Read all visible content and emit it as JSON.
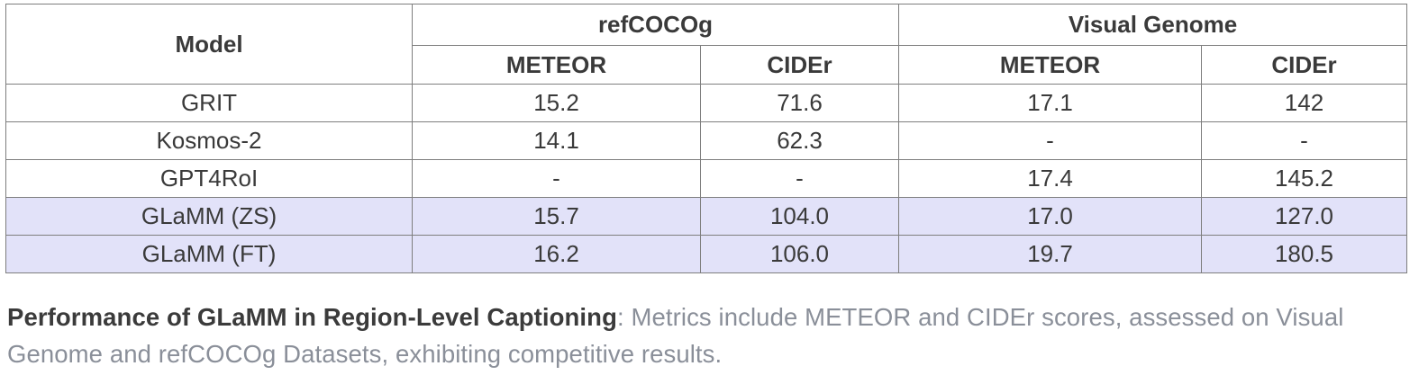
{
  "table": {
    "header": {
      "model_label": "Model",
      "group_refcocog": "refCOCOg",
      "group_visual_genome": "Visual Genome",
      "metric_meteor_1": "METEOR",
      "metric_cider_1": "CIDEr",
      "metric_meteor_2": "METEOR",
      "metric_cider_2": "CIDEr"
    },
    "rows": [
      {
        "model": "GRIT",
        "values": [
          "15.2",
          "71.6",
          "17.1",
          "142"
        ],
        "highlight": false,
        "bold_values": false
      },
      {
        "model": "Kosmos-2",
        "values": [
          "14.1",
          "62.3",
          "-",
          "-"
        ],
        "highlight": false,
        "bold_values": false
      },
      {
        "model": "GPT4RoI",
        "values": [
          "-",
          "-",
          "17.4",
          "145.2"
        ],
        "highlight": false,
        "bold_values": false
      },
      {
        "model": "GLaMM (ZS)",
        "values": [
          "15.7",
          "104.0",
          "17.0",
          "127.0"
        ],
        "highlight": true,
        "bold_values": false
      },
      {
        "model": "GLaMM (FT)",
        "values": [
          "16.2",
          "106.0",
          "19.7",
          "180.5"
        ],
        "highlight": true,
        "bold_values": true
      }
    ]
  },
  "caption": {
    "title": "Performance of GLaMM in Region-Level Captioning",
    "rest": ": Metrics include METEOR and CIDEr scores, assessed on Visual Genome and refCOCOg Datasets, exhibiting competitive results."
  },
  "colors": {
    "highlight_row": "#e2e2f9",
    "table_border": "#7e7e7e",
    "table_text": "#3a3a3a",
    "caption_title_text": "#3b3b3b",
    "caption_muted_text": "#8a8f99"
  }
}
